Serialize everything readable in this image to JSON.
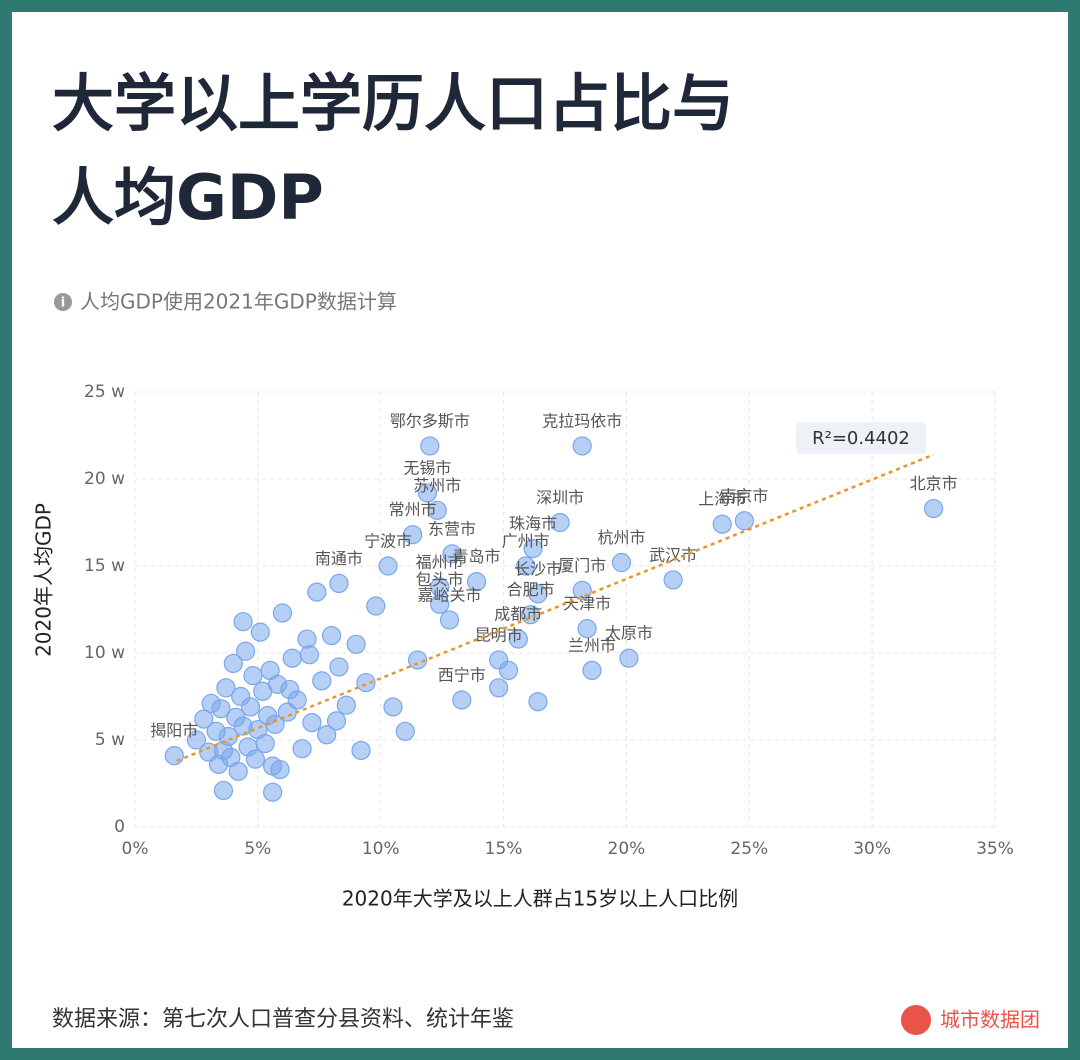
{
  "chart_data": {
    "type": "scatter",
    "title": [
      "大学以上学历人口占比与",
      "人均GDP"
    ],
    "subtitle": "人均GDP使用2021年GDP数据计算",
    "x_label": "2020年大学及以上人群占15岁以上人口比例",
    "y_label": "2020年人均GDP",
    "source": "数据来源：第七次人口普查分县资料、统计年鉴",
    "brand": "城市数据团",
    "color": "#7aa7ec",
    "grid": true,
    "xlim": [
      0,
      35
    ],
    "xticks": [
      {
        "value": 0,
        "label": "0%"
      },
      {
        "value": 5,
        "label": "5%"
      },
      {
        "value": 10,
        "label": "10%"
      },
      {
        "value": 15,
        "label": "15%"
      },
      {
        "value": 20,
        "label": "20%"
      },
      {
        "value": 25,
        "label": "25%"
      },
      {
        "value": 30,
        "label": "30%"
      },
      {
        "value": 35,
        "label": "35%"
      }
    ],
    "ylim": [
      0,
      25
    ],
    "yticks": [
      0,
      {
        "value": 5,
        "label": "5 w"
      },
      {
        "value": 10,
        "label": "10 w"
      },
      {
        "value": 15,
        "label": "15 w"
      },
      {
        "value": 20,
        "label": "20 w"
      },
      {
        "value": 25,
        "label": "25 w"
      }
    ],
    "trendline": {
      "label": "R²=0.4402",
      "x": [
        1.7,
        32.5
      ],
      "values": [
        3.8,
        21.4
      ]
    },
    "x": [
      32.5,
      12.0,
      18.2,
      23.9,
      24.8,
      21.9,
      19.8,
      17.3,
      11.9,
      12.3,
      11.3,
      16.2,
      15.9,
      12.9,
      10.3,
      12.4,
      13.9,
      18.2,
      16.4,
      12.4,
      16.1,
      18.4,
      12.8,
      20.1,
      18.6,
      13.3,
      15.6,
      14.8,
      1.6,
      8.3,
      2.5,
      2.8,
      3.0,
      3.1,
      3.3,
      3.4,
      3.5,
      3.6,
      3.7,
      3.8,
      3.9,
      4.0,
      4.1,
      4.2,
      4.3,
      4.4,
      4.5,
      4.6,
      4.7,
      4.8,
      4.9,
      5.0,
      5.1,
      5.2,
      5.3,
      5.4,
      5.5,
      5.6,
      5.7,
      5.8,
      5.9,
      6.0,
      6.2,
      6.4,
      6.6,
      6.8,
      7.0,
      7.2,
      7.4,
      7.6,
      7.8,
      8.0,
      8.3,
      8.6,
      9.0,
      9.4,
      9.8,
      10.5,
      11.0,
      11.5,
      3.6,
      4.4,
      5.6,
      6.3,
      7.1,
      8.2,
      9.2,
      14.8,
      15.2,
      16.4
    ],
    "values": [
      18.3,
      21.9,
      21.9,
      17.4,
      17.6,
      14.2,
      15.2,
      17.5,
      19.2,
      18.2,
      16.8,
      16.0,
      15.0,
      15.7,
      15.0,
      13.8,
      14.1,
      13.6,
      13.4,
      12.8,
      12.2,
      11.4,
      11.9,
      9.7,
      9.0,
      7.3,
      10.8,
      9.6,
      4.1,
      14.0,
      5.0,
      6.2,
      4.3,
      7.1,
      5.5,
      3.6,
      6.8,
      2.1,
      8.0,
      5.2,
      4.0,
      9.4,
      6.3,
      3.2,
      7.5,
      5.8,
      10.1,
      4.6,
      6.9,
      8.7,
      3.9,
      5.6,
      11.2,
      7.8,
      4.8,
      6.4,
      9.0,
      2.0,
      5.9,
      8.2,
      3.3,
      12.3,
      6.6,
      9.7,
      7.3,
      4.5,
      10.8,
      6.0,
      13.5,
      8.4,
      5.3,
      11.0,
      9.2,
      7.0,
      10.5,
      8.3,
      12.7,
      6.9,
      5.5,
      9.6,
      4.4,
      11.8,
      3.5,
      7.9,
      9.9,
      6.1,
      4.4,
      8.0,
      9.0,
      7.2
    ],
    "labels": [
      "北京市",
      "鄂尔多斯市",
      "克拉玛依市",
      "上海市",
      "南京市",
      "武汉市",
      "杭州市",
      "深圳市",
      "无锡市",
      "苏州市",
      "常州市",
      "珠海市",
      "广州市",
      "东营市",
      "宁波市",
      "福州市",
      "青岛市",
      "厦门市",
      "长沙市",
      "包头市",
      "合肥市",
      "天津市",
      "嘉峪关市",
      "太原市",
      "兰州市",
      "西宁市",
      "成都市",
      "昆明市",
      "揭阳市",
      "南通市",
      null,
      null,
      null,
      null,
      null,
      null,
      null,
      null,
      null,
      null,
      null,
      null,
      null,
      null,
      null,
      null,
      null,
      null,
      null,
      null,
      null,
      null,
      null,
      null,
      null,
      null,
      null,
      null,
      null,
      null,
      null,
      null,
      null,
      null,
      null,
      null,
      null,
      null,
      null,
      null,
      null,
      null,
      null,
      null,
      null,
      null,
      null,
      null,
      null,
      null,
      null,
      null,
      null,
      null,
      null,
      null,
      null,
      null,
      null,
      null
    ]
  }
}
